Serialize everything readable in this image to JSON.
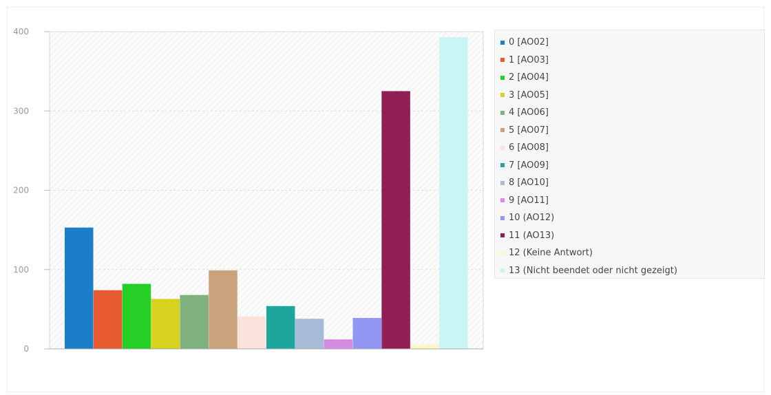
{
  "chart_data": {
    "type": "bar",
    "categories": [
      "0 [AO02]",
      "1 [AO03]",
      "2 [AO04]",
      "3 [AO05]",
      "4 [AO06]",
      "5 [AO07]",
      "6 [AO08]",
      "7 [AO09]",
      "8 [AO10]",
      "9 [AO11]",
      "10 (AO12)",
      "11 (AO13)",
      "12 (Keine Antwort)",
      "13 (Nicht beendet oder nicht gezeigt)"
    ],
    "values": [
      153,
      74,
      82,
      63,
      68,
      99,
      41,
      54,
      38,
      12,
      39,
      325,
      6,
      393
    ],
    "colors": [
      "#1a7fc8",
      "#e85a32",
      "#25cf25",
      "#d7d21e",
      "#7fb17f",
      "#c8a37b",
      "#fae3da",
      "#1da69c",
      "#a7bbd6",
      "#d48ce0",
      "#9196f5",
      "#8f1f55",
      "#fcf6cb",
      "#c9f6f5"
    ],
    "y_ticks": [
      "0",
      "100",
      "200",
      "300",
      "400"
    ],
    "ylim": [
      0,
      400
    ],
    "grid": true,
    "legend_position": "right",
    "title": "",
    "xlabel": "",
    "ylabel": ""
  }
}
